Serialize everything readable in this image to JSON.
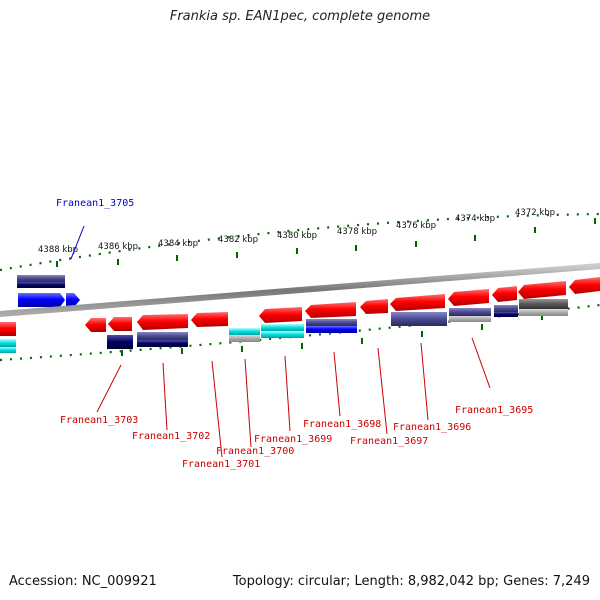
{
  "title": "Frankia sp. EAN1pec, complete genome",
  "footer": {
    "accession": "Accession: NC_009921",
    "topology": "Topology: circular; Length: 8,982,042 bp; Genes: 7,249"
  },
  "scale_ticks": [
    "4388 kbp",
    "4386 kbp",
    "4384 kbp",
    "4382 kbp",
    "4380 kbp",
    "4378 kbp",
    "4376 kbp",
    "4374 kbp",
    "4372 kbp"
  ],
  "gene_labels": [
    {
      "text": "Franean1_3705",
      "strand": "forward",
      "color": "#0000cc"
    },
    {
      "text": "Franean1_3703",
      "strand": "reverse",
      "color": "#cc0000"
    },
    {
      "text": "Franean1_3702",
      "strand": "reverse",
      "color": "#cc0000"
    },
    {
      "text": "Franean1_3701",
      "strand": "reverse",
      "color": "#cc0000"
    },
    {
      "text": "Franean1_3700",
      "strand": "reverse",
      "color": "#cc0000"
    },
    {
      "text": "Franean1_3699",
      "strand": "reverse",
      "color": "#cc0000"
    },
    {
      "text": "Franean1_3698",
      "strand": "reverse",
      "color": "#cc0000"
    },
    {
      "text": "Franean1_3697",
      "strand": "reverse",
      "color": "#cc0000"
    },
    {
      "text": "Franean1_3696",
      "strand": "reverse",
      "color": "#cc0000"
    },
    {
      "text": "Franean1_3695",
      "strand": "reverse",
      "color": "#cc0000"
    }
  ],
  "colors": {
    "forward_gene": "#0000ee",
    "reverse_gene": "#ee0000",
    "backbone": "#888888",
    "ticks": "#006600",
    "cyan_feature": "#00dddd",
    "navy_feature": "#000066"
  }
}
